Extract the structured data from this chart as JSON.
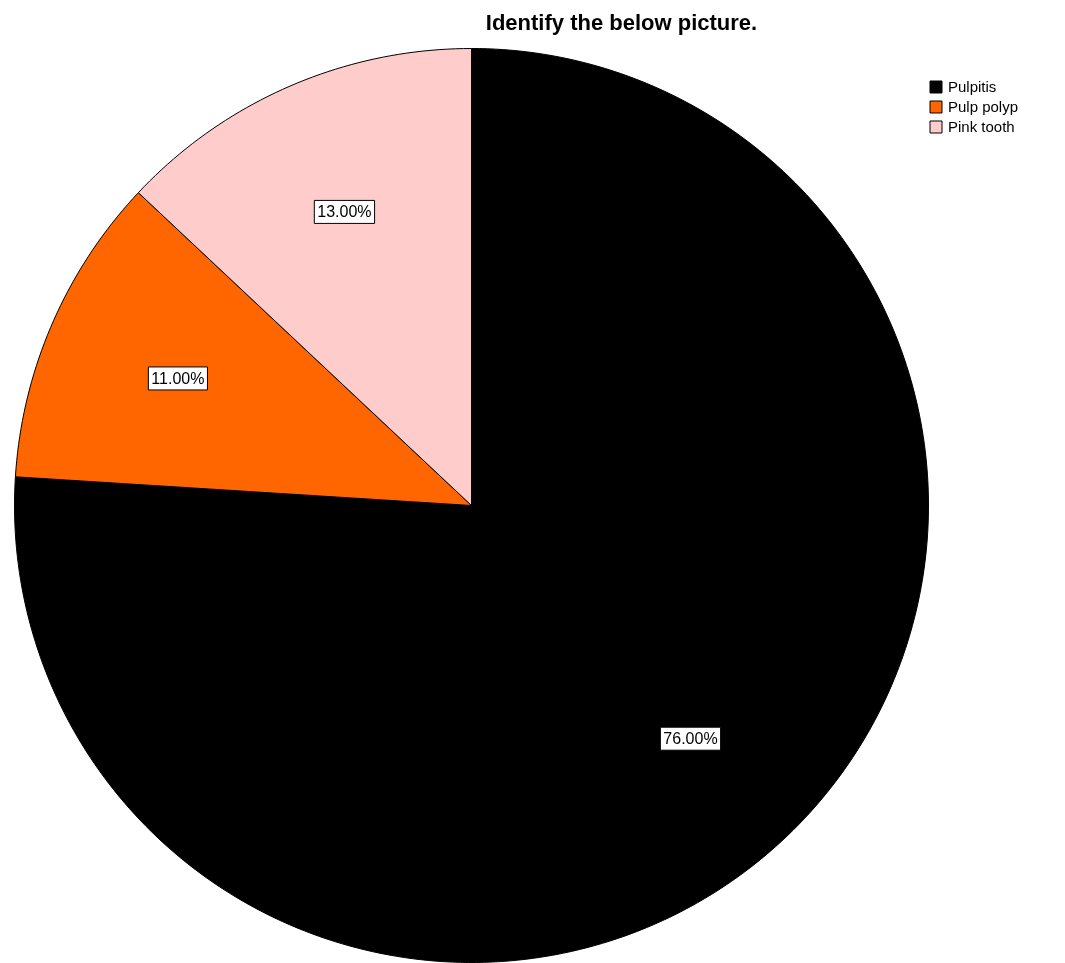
{
  "chart_data": {
    "type": "pie",
    "title": "Identify the below picture.",
    "categories": [
      "Pulpitis",
      "Pulp polyp",
      "Pink tooth"
    ],
    "values": [
      76,
      11,
      13
    ],
    "colors": [
      "#000000",
      "#ff6600",
      "#ffcccc"
    ],
    "value_labels": [
      "76.00%",
      "11.00%",
      "13.00%"
    ],
    "legend": "top right"
  }
}
